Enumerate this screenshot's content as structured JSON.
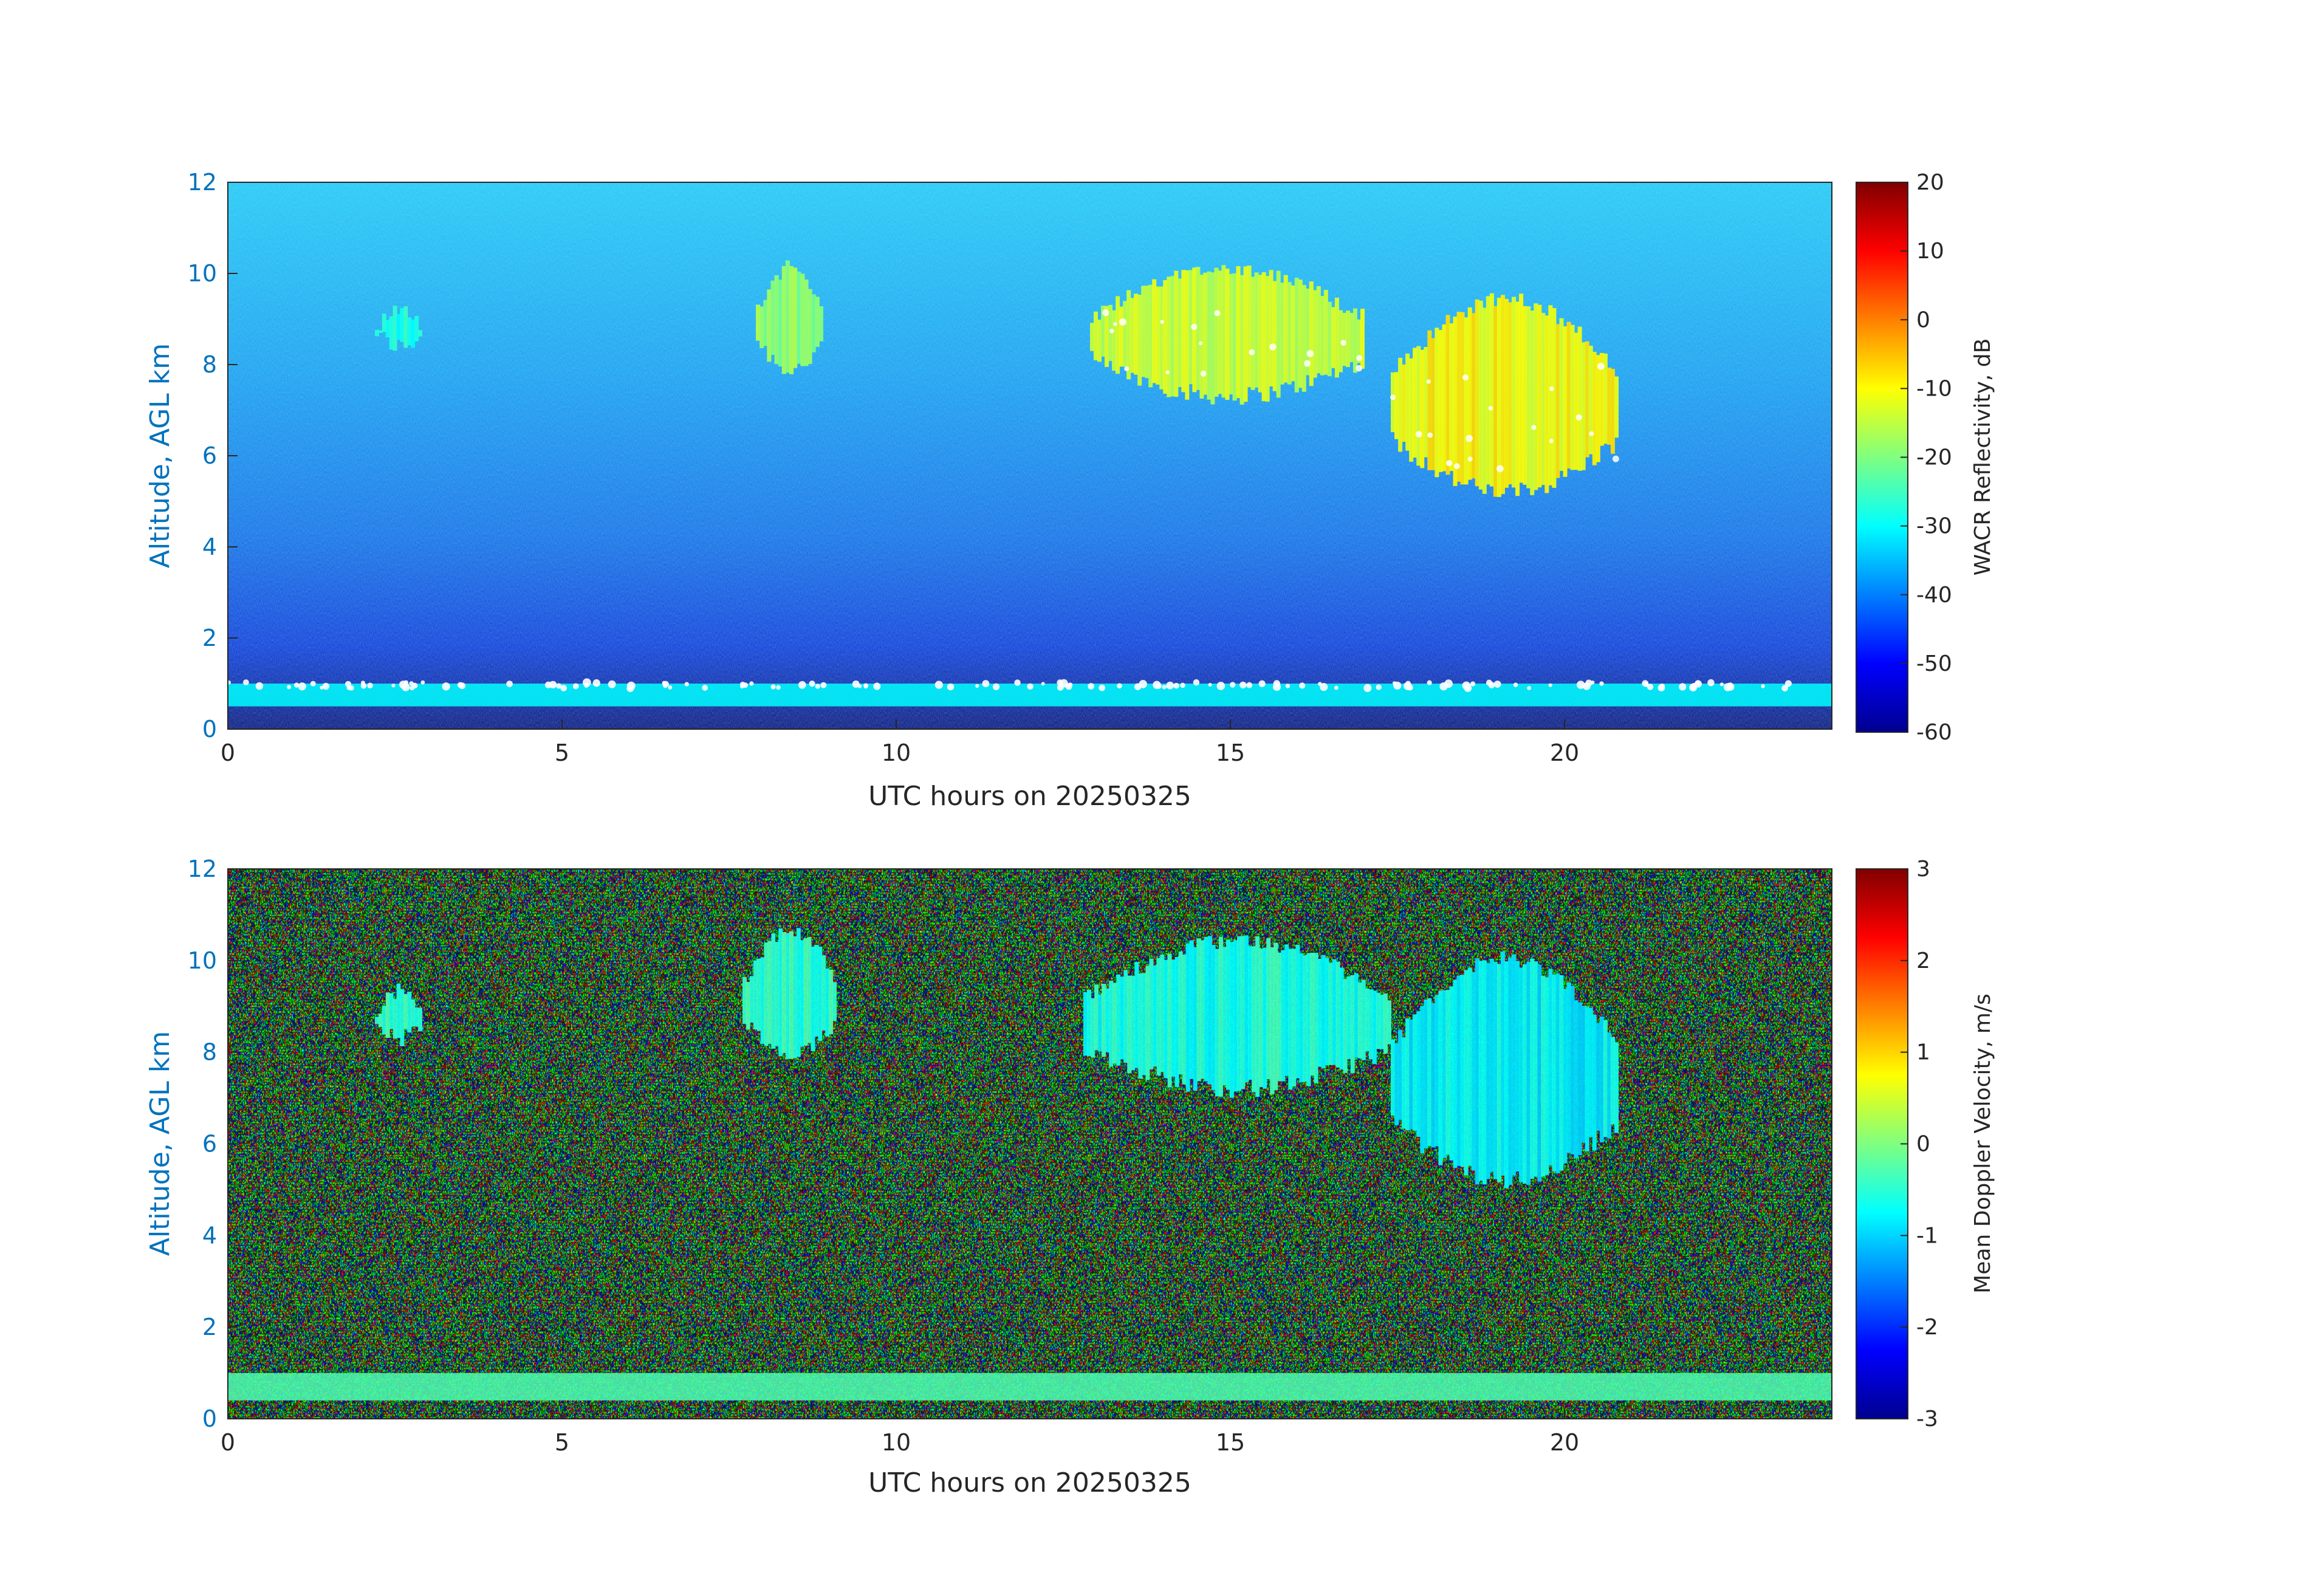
{
  "chart_data": [
    {
      "type": "heatmap",
      "field": "reflectivity",
      "xlabel": "UTC hours on 20250325",
      "ylabel": "Altitude, AGL km",
      "xlim": [
        0,
        24
      ],
      "ylim": [
        0,
        12
      ],
      "xticks": [
        "0",
        "5",
        "10",
        "15",
        "20"
      ],
      "yticks": [
        "0",
        "2",
        "4",
        "6",
        "8",
        "10",
        "12"
      ],
      "colorbar": {
        "label": "WACR Reflectivity, dB",
        "range": [
          -60,
          20
        ],
        "ticks": [
          "-60",
          "-50",
          "-40",
          "-30",
          "-20",
          "-10",
          "0",
          "10",
          "20"
        ],
        "colormap": "jet"
      },
      "features": [
        {
          "kind": "cloud",
          "t": [
            2.2,
            2.9
          ],
          "z": [
            8.2,
            9.4
          ],
          "dbz": -28
        },
        {
          "kind": "cloud",
          "t": [
            7.9,
            8.9
          ],
          "z": [
            7.7,
            10.3
          ],
          "dbz": -18
        },
        {
          "kind": "cloud",
          "t": [
            12.9,
            17.0
          ],
          "z": [
            7.1,
            10.3
          ],
          "dbz": -14
        },
        {
          "kind": "cloud",
          "t": [
            17.4,
            20.8
          ],
          "z": [
            5.0,
            9.6
          ],
          "dbz": -10
        },
        {
          "kind": "boundary_layer",
          "t": [
            0,
            24
          ],
          "z": [
            0.5,
            1.0
          ],
          "dbz": -30
        }
      ]
    },
    {
      "type": "heatmap",
      "field": "doppler_velocity",
      "xlabel": "UTC hours on 20250325",
      "ylabel": "Altitude, AGL km",
      "xlim": [
        0,
        24
      ],
      "ylim": [
        0,
        12
      ],
      "xticks": [
        "0",
        "5",
        "10",
        "15",
        "20"
      ],
      "yticks": [
        "0",
        "2",
        "4",
        "6",
        "8",
        "10",
        "12"
      ],
      "colorbar": {
        "label": "Mean Doppler Velocity, m/s",
        "range": [
          -3,
          3
        ],
        "ticks": [
          "-3",
          "-2",
          "-1",
          "0",
          "1",
          "2",
          "3"
        ],
        "colormap": "jet"
      },
      "features": [
        {
          "kind": "cloud",
          "t": [
            2.2,
            2.9
          ],
          "z": [
            8.1,
            9.5
          ],
          "velocity": -0.4
        },
        {
          "kind": "cloud",
          "t": [
            7.7,
            9.1
          ],
          "z": [
            7.7,
            10.8
          ],
          "velocity": -0.5
        },
        {
          "kind": "cloud",
          "t": [
            12.8,
            17.4
          ],
          "z": [
            7.0,
            10.6
          ],
          "velocity": -0.6
        },
        {
          "kind": "cloud",
          "t": [
            17.4,
            20.8
          ],
          "z": [
            5.0,
            10.2
          ],
          "velocity": -0.8
        },
        {
          "kind": "boundary_layer",
          "t": [
            0,
            24
          ],
          "z": [
            0.4,
            1.0
          ],
          "velocity": -0.3
        }
      ]
    }
  ]
}
